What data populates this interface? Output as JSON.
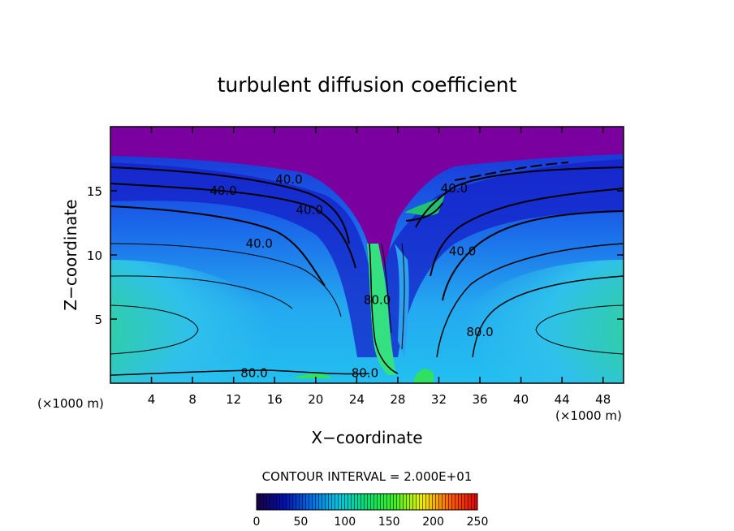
{
  "chart_data": {
    "type": "heatmap",
    "title": "turbulent diffusion coefficient",
    "xlabel": "X−coordinate",
    "ylabel": "Z−coordinate",
    "x_unit_left": "(×1000 m)",
    "x_unit_right": "(×1000 m)",
    "xlim": [
      0,
      50
    ],
    "ylim": [
      0,
      20
    ],
    "x_ticks": [
      4,
      8,
      12,
      16,
      20,
      24,
      28,
      32,
      36,
      40,
      44,
      48
    ],
    "y_ticks": [
      5,
      10,
      15
    ],
    "contour_interval_text": "CONTOUR INTERVAL = 2.000E+01",
    "contour_labels": [
      {
        "text": "40.0",
        "x": 11,
        "z": 15.0
      },
      {
        "text": "40.0",
        "x": 17.4,
        "z": 15.9
      },
      {
        "text": "40.0",
        "x": 19.4,
        "z": 13.5
      },
      {
        "text": "40.0",
        "x": 14.5,
        "z": 10.9
      },
      {
        "text": "40.0",
        "x": 33.5,
        "z": 15.2
      },
      {
        "text": "40.0",
        "x": 34.3,
        "z": 10.3
      },
      {
        "text": "80.0",
        "x": 26.0,
        "z": 6.5
      },
      {
        "text": "80.0",
        "x": 36.0,
        "z": 4.0
      },
      {
        "text": "80.0",
        "x": 14.0,
        "z": 0.8
      },
      {
        "text": "80.0",
        "x": 24.8,
        "z": 0.8
      }
    ],
    "colorbar": {
      "min": 0,
      "max": 250,
      "ticks": [
        0,
        50,
        100,
        150,
        200,
        250
      ],
      "colors": [
        "#1a0042",
        "#0010b0",
        "#0070e8",
        "#00c8e0",
        "#00e070",
        "#40f020",
        "#f0f000",
        "#ff6000",
        "#e00000"
      ]
    },
    "colors": {
      "top_layer": "#7a00a0",
      "core_green": "#2ed86a",
      "mid_blue": "#1a8af0",
      "light_cyan": "#2fc0ec",
      "deep_blue": "#1520c8"
    }
  }
}
